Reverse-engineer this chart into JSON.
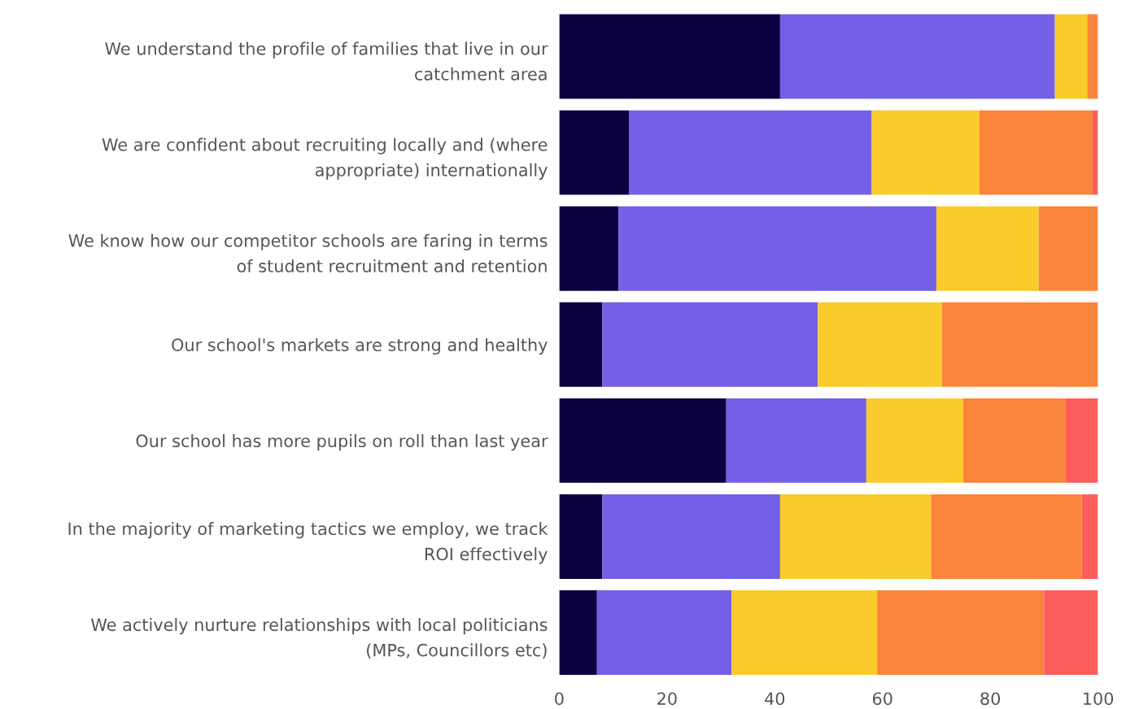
{
  "chart_data": {
    "type": "bar",
    "orientation": "horizontal",
    "stacked": true,
    "categories": [
      "We understand the profile of families that live in our\ncatchment area",
      "We are confident about recruiting locally and (where\nappropriate) internationally",
      "We know how our competitor schools are faring in terms\nof student recruitment and retention",
      "Our school's markets are strong and healthy",
      "Our school has more pupils on roll than last year",
      "In the majority of marketing tactics we employ, we track\nROI effectively",
      "We actively nurture relationships with local politicians\n(MPs, Councillors etc)"
    ],
    "series": [
      {
        "color": "#0d0040",
        "values": [
          41,
          13,
          11,
          8,
          31,
          8,
          7
        ]
      },
      {
        "color": "#7460e6",
        "values": [
          51,
          45,
          59,
          40,
          26,
          33,
          25
        ]
      },
      {
        "color": "#f9cb2c",
        "values": [
          6,
          20,
          19,
          23,
          18,
          28,
          27
        ]
      },
      {
        "color": "#fa853a",
        "values": [
          2,
          21,
          11,
          29,
          19,
          28,
          31
        ]
      },
      {
        "color": "#fb5d5d",
        "values": [
          0,
          1,
          0,
          0,
          6,
          3,
          10
        ]
      }
    ],
    "xlim": [
      0,
      100
    ],
    "xticks": [
      0,
      20,
      40,
      60,
      80,
      100
    ],
    "grid": false,
    "legend": false
  }
}
